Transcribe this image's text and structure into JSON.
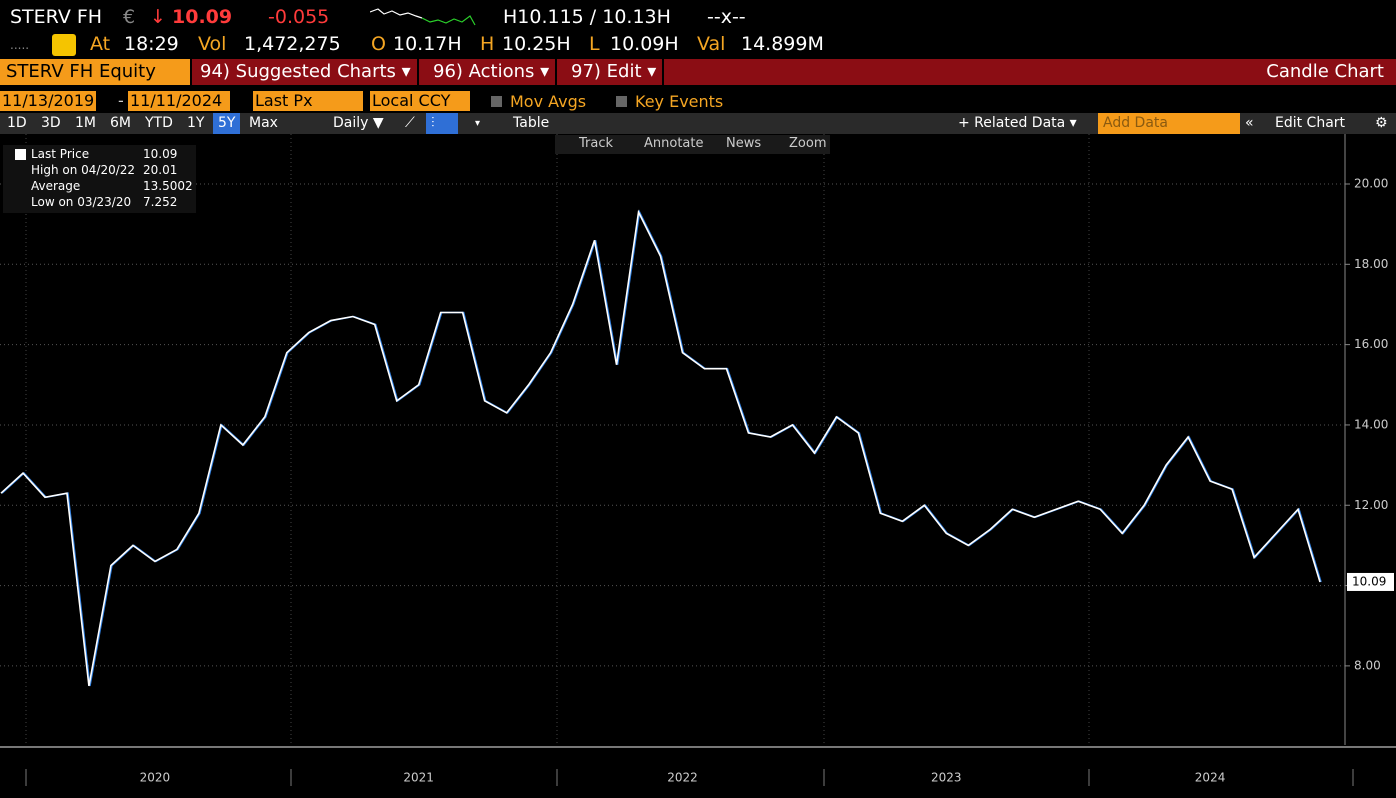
{
  "quote": {
    "ticker": "STERV FH",
    "currency": "€",
    "arrow": "↓",
    "last": "10.09",
    "change": "-0.055",
    "bid_ask": "H10.115 / 10.13H",
    "size": "--x--",
    "dots": ".....",
    "at_label": "At",
    "time": "18:29",
    "vol_label": "Vol",
    "vol": "1,472,275",
    "open_label": "O",
    "open": "10.17H",
    "high_label": "H",
    "high": "10.25H",
    "low_label": "L",
    "low": "10.09H",
    "val_label": "Val",
    "val": "14.899M"
  },
  "menu": {
    "security": "STERV FH Equity",
    "items": [
      "94) Suggested Charts ▾",
      "96) Actions ▾",
      "97) Edit ▾"
    ],
    "chart_name": "Candle Chart"
  },
  "settings": {
    "start": "11/13/2019",
    "dash": "-",
    "end": "11/11/2024",
    "field": "Last Px",
    "currency": "Local CCY",
    "mov_avgs": "Mov Avgs",
    "key_events": "Key Events"
  },
  "toolbar": {
    "periods": [
      "1D",
      "3D",
      "1M",
      "6M",
      "YTD",
      "1Y",
      "5Y",
      "Max"
    ],
    "selected": "5Y",
    "frequency": "Daily ▼",
    "table": "Table",
    "related": "+ Related Data ▾",
    "add_data": "Add Data",
    "edit": "Edit Chart"
  },
  "chart_tools": [
    "Track",
    "Annotate",
    "News",
    "Zoom"
  ],
  "legend": [
    {
      "label": "Last Price",
      "value": "10.09"
    },
    {
      "label": "High on 04/20/22",
      "value": "20.01"
    },
    {
      "label": "Average",
      "value": "13.5002"
    },
    {
      "label": "Low on 03/23/20",
      "value": "7.252"
    }
  ],
  "chart_data": {
    "type": "line",
    "color": "#ffffff",
    "categories": [
      null,
      null,
      null,
      null,
      null,
      null,
      null,
      "2020",
      null,
      null,
      null,
      null,
      null,
      null,
      null,
      null,
      null,
      null,
      null,
      "2021",
      null,
      null,
      null,
      null,
      null,
      null,
      null,
      null,
      null,
      null,
      null,
      "2022",
      null,
      null,
      null,
      null,
      null,
      null,
      null,
      null,
      null,
      null,
      null,
      "2023",
      null,
      null,
      null,
      null,
      null,
      null,
      null,
      null,
      null,
      null,
      null,
      "2024",
      null,
      null,
      null,
      null,
      null
    ],
    "values": [
      12.3,
      12.8,
      12.2,
      12.3,
      7.5,
      10.5,
      11,
      10.6,
      10.9,
      11.8,
      14,
      13.5,
      14.2,
      15.8,
      16.3,
      16.6,
      16.7,
      16.5,
      14.6,
      15,
      16.8,
      16.8,
      14.6,
      14.3,
      15,
      15.8,
      17,
      18.6,
      15.5,
      19.3,
      18.2,
      15.8,
      15.4,
      15.4,
      13.8,
      13.7,
      14,
      13.3,
      14.2,
      13.8,
      11.8,
      11.6,
      12,
      11.3,
      11,
      11.4,
      11.9,
      11.7,
      11.9,
      12.1,
      11.9,
      11.3,
      12,
      13,
      13.7,
      12.6,
      12.4,
      10.7,
      11.3,
      11.9,
      10.09
    ],
    "ylim": [
      6.03,
      21.22
    ],
    "yticks": [
      {
        "value": 8,
        "label": "8.00"
      },
      {
        "value": 10,
        "label": "10.00"
      },
      {
        "value": 12,
        "label": "12.00"
      },
      {
        "value": 14,
        "label": "14.00"
      },
      {
        "value": 16,
        "label": "16.00"
      },
      {
        "value": 18,
        "label": "18.00"
      },
      {
        "value": 20,
        "label": "20.00"
      }
    ],
    "grid": true
  }
}
